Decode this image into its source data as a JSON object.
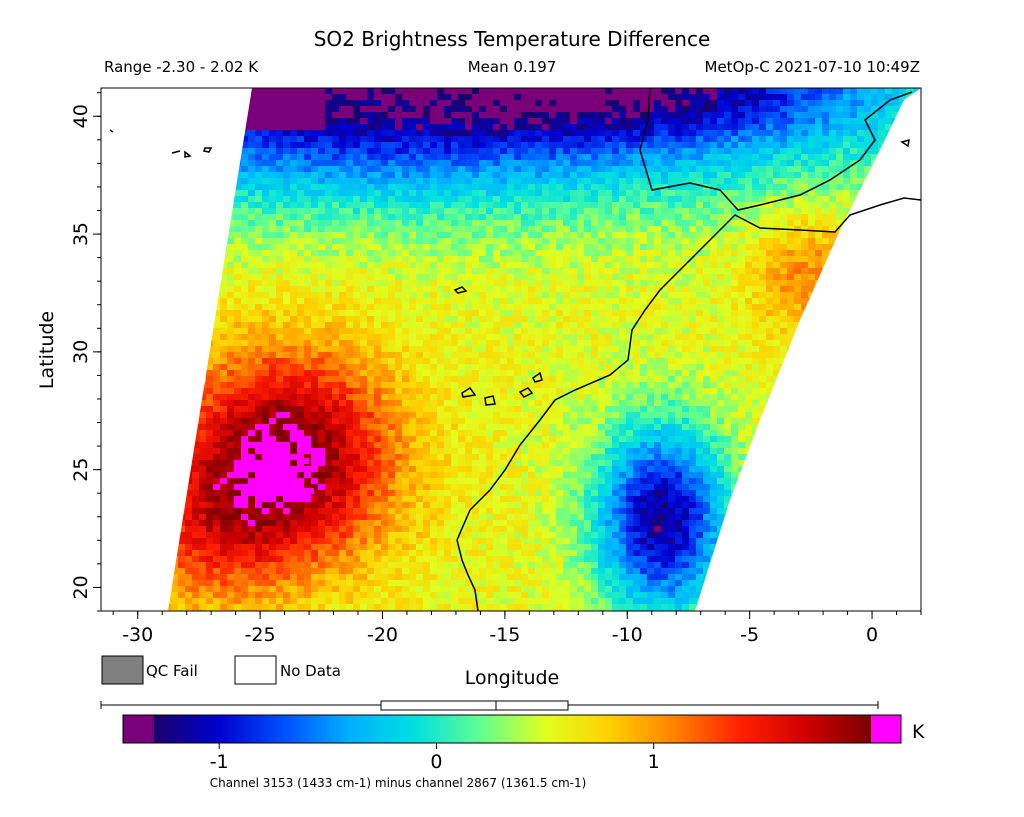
{
  "header": {
    "title": "SO2 Brightness Temperature Difference",
    "range_text": "Range -2.30 - 2.02 K",
    "mean_text": "Mean 0.197",
    "platform_time": "MetOp-C 2021-07-10 10:49Z"
  },
  "map": {
    "xlabel": "Longitude",
    "ylabel": "Latitude",
    "xlim": [
      -31.5,
      2
    ],
    "ylim": [
      19,
      41.2
    ],
    "x_ticks": [
      "-30",
      "-25",
      "-20",
      "-15",
      "-10",
      "-5",
      "0"
    ],
    "y_ticks": [
      "20",
      "25",
      "30",
      "35",
      "40"
    ],
    "x_tick_values": [
      -30,
      -25,
      -20,
      -15,
      -10,
      -5,
      0
    ],
    "y_tick_values": [
      20,
      25,
      30,
      35,
      40
    ]
  },
  "legend": {
    "qc_fail": "QC Fail",
    "no_data": "No Data",
    "qc_fail_color": "#808080",
    "no_data_color": "#ffffff"
  },
  "colorbar": {
    "unit": "K",
    "ticks": [
      "-1",
      "0",
      "1"
    ],
    "tick_values": [
      -1,
      0,
      1
    ],
    "under_color": "#7a007a",
    "over_color": "#ff00ff",
    "gradient": [
      "#1a006a",
      "#0000d0",
      "#0050ff",
      "#00b0ff",
      "#00e0e0",
      "#60ff90",
      "#e0ff20",
      "#ffd000",
      "#ff8000",
      "#ff2000",
      "#d00000",
      "#7a0000"
    ],
    "caption": "Channel 3153 (1433 cm-1) minus channel 2867 (1361.5 cm-1)"
  }
}
